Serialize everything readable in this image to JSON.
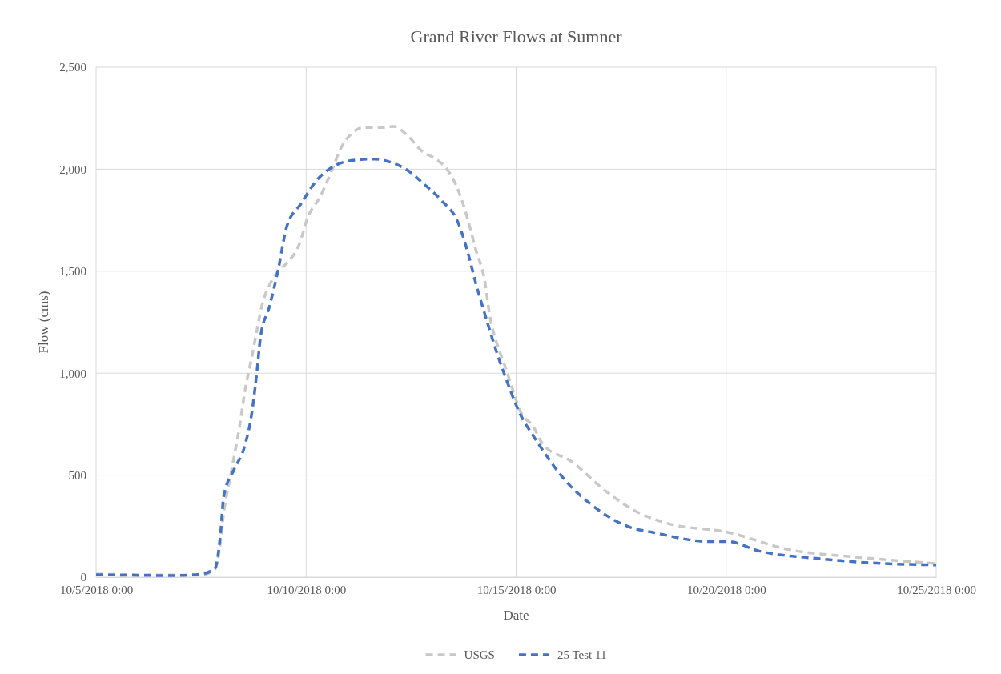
{
  "chart_data": {
    "type": "line",
    "title": "Grand River Flows at Sumner",
    "xlabel": "Date",
    "ylabel": "Flow (cms)",
    "xlim": [
      "2018-10-05T00:00",
      "2018-10-25T00:00"
    ],
    "xticks": [
      {
        "value": "2018-10-05T00:00",
        "label": "10/5/2018 0:00"
      },
      {
        "value": "2018-10-10T00:00",
        "label": "10/10/2018 0:00"
      },
      {
        "value": "2018-10-15T00:00",
        "label": "10/15/2018 0:00"
      },
      {
        "value": "2018-10-20T00:00",
        "label": "10/20/2018 0:00"
      },
      {
        "value": "2018-10-25T00:00",
        "label": "10/25/2018 0:00"
      }
    ],
    "ylim": [
      0,
      2500
    ],
    "yticks": [
      {
        "value": 0,
        "label": "0"
      },
      {
        "value": 500,
        "label": "500"
      },
      {
        "value": 1000,
        "label": "1,000"
      },
      {
        "value": 1500,
        "label": "1,500"
      },
      {
        "value": 2000,
        "label": "2,000"
      },
      {
        "value": 2500,
        "label": "2,500"
      }
    ],
    "grid": true,
    "legend": "bottom",
    "series": [
      {
        "name": "USGS",
        "color": "#c8c8c8",
        "line_style": "dashed",
        "x": [
          "2018-10-05T00:00",
          "2018-10-06T00:00",
          "2018-10-07T12:00",
          "2018-10-07T20:00",
          "2018-10-07T22:00",
          "2018-10-08T01:00",
          "2018-10-08T05:00",
          "2018-10-08T10:00",
          "2018-10-08T13:00",
          "2018-10-08T17:00",
          "2018-10-08T20:00",
          "2018-10-08T23:00",
          "2018-10-09T03:00",
          "2018-10-09T08:00",
          "2018-10-09T13:00",
          "2018-10-09T20:00",
          "2018-10-10T01:00",
          "2018-10-10T08:00",
          "2018-10-10T14:00",
          "2018-10-10T20:00",
          "2018-10-11T02:00",
          "2018-10-11T09:00",
          "2018-10-11T19:00",
          "2018-10-12T02:00",
          "2018-10-12T10:00",
          "2018-10-12T18:00",
          "2018-10-13T03:00",
          "2018-10-13T09:00",
          "2018-10-13T15:00",
          "2018-10-13T20:00",
          "2018-10-14T01:00",
          "2018-10-14T06:00",
          "2018-10-14T09:00",
          "2018-10-14T13:00",
          "2018-10-14T17:00",
          "2018-10-14T22:00",
          "2018-10-15T02:00",
          "2018-10-15T10:00",
          "2018-10-15T15:00",
          "2018-10-16T08:00",
          "2018-10-17T02:00",
          "2018-10-17T20:00",
          "2018-10-18T14:00",
          "2018-10-20T01:00",
          "2018-10-21T12:00",
          "2018-10-23T00:00",
          "2018-10-25T00:00"
        ],
        "values": [
          15,
          12,
          10,
          40,
          105,
          320,
          505,
          740,
          910,
          1080,
          1215,
          1340,
          1430,
          1500,
          1540,
          1630,
          1765,
          1865,
          1980,
          2105,
          2175,
          2205,
          2205,
          2210,
          2165,
          2090,
          2045,
          1995,
          1895,
          1765,
          1605,
          1455,
          1280,
          1145,
          1050,
          920,
          820,
          735,
          655,
          565,
          430,
          325,
          265,
          220,
          135,
          100,
          67
        ]
      },
      {
        "name": "25 Test 11",
        "color": "#4472c4",
        "line_style": "dashed",
        "x": [
          "2018-10-05T00:00",
          "2018-10-06T19:00",
          "2018-10-07T12:00",
          "2018-10-07T20:00",
          "2018-10-07T23:00",
          "2018-10-08T01:00",
          "2018-10-08T07:00",
          "2018-10-08T13:00",
          "2018-10-08T17:00",
          "2018-10-08T20:00",
          "2018-10-08T22:00",
          "2018-10-09T03:00",
          "2018-10-09T08:00",
          "2018-10-09T13:00",
          "2018-10-09T21:00",
          "2018-10-10T06:00",
          "2018-10-10T16:00",
          "2018-10-11T04:00",
          "2018-10-11T15:00",
          "2018-10-12T00:00",
          "2018-10-12T10:00",
          "2018-10-12T19:00",
          "2018-10-13T05:00",
          "2018-10-13T15:00",
          "2018-10-13T20:00",
          "2018-10-14T01:00",
          "2018-10-14T07:00",
          "2018-10-14T13:00",
          "2018-10-14T19:00",
          "2018-10-15T02:00",
          "2018-10-15T10:00",
          "2018-10-15T15:00",
          "2018-10-16T04:00",
          "2018-10-16T19:00",
          "2018-10-17T17:00",
          "2018-10-18T06:00",
          "2018-10-19T14:00",
          "2018-10-20T01:00",
          "2018-10-20T18:00",
          "2018-10-22T06:00",
          "2018-10-23T17:00",
          "2018-10-25T00:00"
        ],
        "values": [
          12,
          8,
          15,
          45,
          205,
          400,
          530,
          645,
          805,
          1015,
          1180,
          1325,
          1505,
          1720,
          1830,
          1945,
          2015,
          2045,
          2050,
          2035,
          1995,
          1930,
          1850,
          1735,
          1605,
          1440,
          1265,
          1100,
          955,
          805,
          690,
          625,
          475,
          355,
          245,
          220,
          175,
          175,
          130,
          90,
          67,
          60
        ]
      }
    ]
  }
}
